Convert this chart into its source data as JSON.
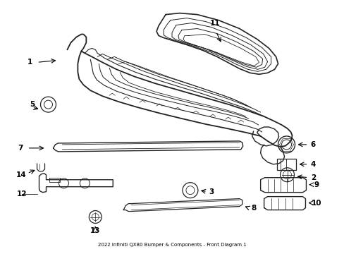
{
  "title": "2022 Infiniti QX80 Bumper & Components - Front Diagram 1",
  "background_color": "#ffffff",
  "line_color": "#222222",
  "fig_width": 4.89,
  "fig_height": 3.6,
  "dpi": 100
}
